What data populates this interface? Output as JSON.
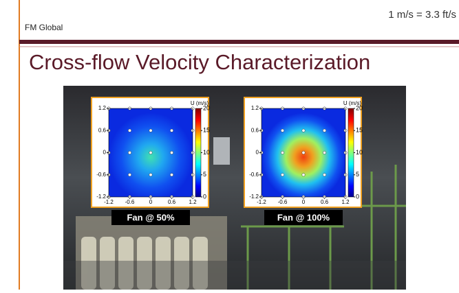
{
  "header": {
    "company": "FM Global",
    "conversion": "1 m/s = 3.3 ft/s"
  },
  "title": "Cross-flow Velocity Characterization",
  "panels": [
    {
      "caption": "Fan @ 50%",
      "colorbar": {
        "label": "U (m/s)",
        "ticks": [
          0,
          5,
          10,
          15,
          20
        ]
      },
      "xticks": [
        -1.2,
        -0.6,
        0,
        0.6,
        1.2
      ],
      "yticks": [
        1.2,
        0.6,
        0,
        -0.6,
        -1.2
      ]
    },
    {
      "caption": "Fan @ 100%",
      "colorbar": {
        "label": "U (m/s)",
        "ticks": [
          0,
          5,
          10,
          15,
          20
        ]
      },
      "xticks": [
        -1.2,
        -0.6,
        0,
        0.6,
        1.2
      ],
      "yticks": [
        1.2,
        0.6,
        0,
        -0.6,
        -1.2
      ]
    }
  ]
}
